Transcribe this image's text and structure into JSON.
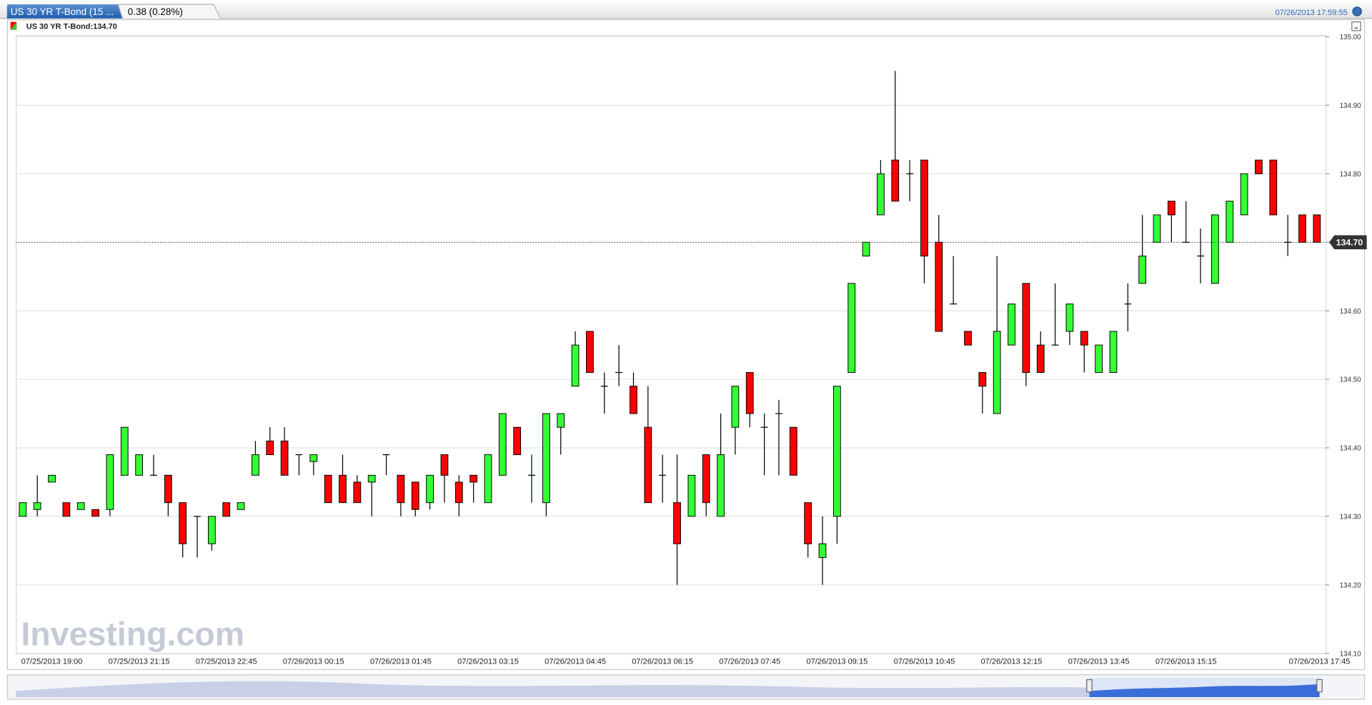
{
  "header": {
    "tab_title": "US 30 YR T-Bond (15 ...",
    "change": "0.38 (0.28%)",
    "timestamp": "07/26/2013 17:59:55"
  },
  "watermark": "Investing.com",
  "chart_data": {
    "type": "candlestick",
    "legend_label": "US 30 YR T-Bond:134.70",
    "up_color": "#33ff33",
    "down_color": "#ff0000",
    "grid": true,
    "ylim": [
      134.1,
      135.0
    ],
    "yticks": [
      {
        "value": 134.1,
        "label": "134.10"
      },
      {
        "value": 134.2,
        "label": "134.20"
      },
      {
        "value": 134.3,
        "label": "134.30"
      },
      {
        "value": 134.4,
        "label": "134.40"
      },
      {
        "value": 134.5,
        "label": "134.50"
      },
      {
        "value": 134.6,
        "label": "134.60"
      },
      {
        "value": 134.7,
        "label": "134.70"
      },
      {
        "value": 134.8,
        "label": "134.80"
      },
      {
        "value": 134.9,
        "label": "134.90"
      },
      {
        "value": 135.0,
        "label": "135.00"
      }
    ],
    "last_price": {
      "value": 134.7,
      "label": "134.70"
    },
    "categories": [
      null,
      null,
      "07/25/2013 19:00",
      null,
      null,
      null,
      null,
      null,
      "07/25/2013 21:15",
      null,
      null,
      null,
      null,
      null,
      "07/25/2013 22:45",
      null,
      null,
      null,
      null,
      null,
      "07/26/2013 00:15",
      null,
      null,
      null,
      null,
      null,
      "07/26/2013 01:45",
      null,
      null,
      null,
      null,
      null,
      "07/26/2013 03:15",
      null,
      null,
      null,
      null,
      null,
      "07/26/2013 04:45",
      null,
      null,
      null,
      null,
      null,
      "07/26/2013 06:15",
      null,
      null,
      null,
      null,
      null,
      "07/26/2013 07:45",
      null,
      null,
      null,
      null,
      null,
      "07/26/2013 09:15",
      null,
      null,
      null,
      null,
      null,
      "07/26/2013 10:45",
      null,
      null,
      null,
      null,
      null,
      "07/26/2013 12:15",
      null,
      null,
      null,
      null,
      null,
      "07/26/2013 13:45",
      null,
      null,
      null,
      null,
      null,
      "07/26/2013 15:15",
      null,
      null,
      null,
      null,
      null,
      null,
      null,
      null,
      "07/26/2013 17:45"
    ],
    "open": [
      134.3,
      134.31,
      134.35,
      134.32,
      134.31,
      134.31,
      134.31,
      134.36,
      134.36,
      134.36,
      134.36,
      134.32,
      134.3,
      134.26,
      134.32,
      134.31,
      134.36,
      134.41,
      134.41,
      134.39,
      134.38,
      134.36,
      134.36,
      134.35,
      134.35,
      134.39,
      134.36,
      134.35,
      134.32,
      134.39,
      134.35,
      134.36,
      134.32,
      134.36,
      134.43,
      134.36,
      134.32,
      134.43,
      134.49,
      134.57,
      134.49,
      134.51,
      134.49,
      134.43,
      134.36,
      134.32,
      134.3,
      134.39,
      134.3,
      134.43,
      134.51,
      134.43,
      134.45,
      134.43,
      134.32,
      134.24,
      134.3,
      134.51,
      134.68,
      134.74,
      134.82,
      134.8,
      134.82,
      134.7,
      134.61,
      134.57,
      134.51,
      134.45,
      134.55,
      134.64,
      134.55,
      134.55,
      134.57,
      134.57,
      134.51,
      134.51,
      134.61,
      134.64,
      134.7,
      134.76,
      134.7,
      134.68,
      134.64,
      134.7,
      134.74,
      134.82,
      134.82,
      134.7,
      134.74,
      134.74
    ],
    "high": [
      134.32,
      134.36,
      134.36,
      134.32,
      134.32,
      134.31,
      134.39,
      134.43,
      134.39,
      134.39,
      134.36,
      134.32,
      134.3,
      134.3,
      134.32,
      134.32,
      134.41,
      134.43,
      134.43,
      134.39,
      134.39,
      134.36,
      134.39,
      134.36,
      134.36,
      134.39,
      134.36,
      134.35,
      134.36,
      134.39,
      134.36,
      134.36,
      134.39,
      134.45,
      134.43,
      134.39,
      134.45,
      134.45,
      134.57,
      134.57,
      134.51,
      134.55,
      134.51,
      134.49,
      134.39,
      134.39,
      134.36,
      134.39,
      134.45,
      134.49,
      134.51,
      134.45,
      134.47,
      134.43,
      134.32,
      134.3,
      134.49,
      134.64,
      134.7,
      134.82,
      134.95,
      134.82,
      134.82,
      134.74,
      134.68,
      134.57,
      134.51,
      134.68,
      134.61,
      134.64,
      134.57,
      134.64,
      134.61,
      134.57,
      134.55,
      134.57,
      134.64,
      134.74,
      134.74,
      134.76,
      134.76,
      134.72,
      134.74,
      134.76,
      134.8,
      134.82,
      134.82,
      134.74,
      134.74,
      134.74
    ],
    "low": [
      134.3,
      134.3,
      134.35,
      134.3,
      134.31,
      134.3,
      134.3,
      134.36,
      134.36,
      134.36,
      134.3,
      134.24,
      134.24,
      134.25,
      134.3,
      134.31,
      134.36,
      134.39,
      134.36,
      134.36,
      134.36,
      134.32,
      134.32,
      134.32,
      134.3,
      134.36,
      134.3,
      134.3,
      134.31,
      134.32,
      134.3,
      134.32,
      134.32,
      134.36,
      134.39,
      134.32,
      134.3,
      134.39,
      134.49,
      134.51,
      134.45,
      134.49,
      134.45,
      134.32,
      134.32,
      134.2,
      134.3,
      134.3,
      134.3,
      134.39,
      134.43,
      134.36,
      134.36,
      134.36,
      134.24,
      134.2,
      134.26,
      134.51,
      134.68,
      134.74,
      134.76,
      134.76,
      134.64,
      134.57,
      134.61,
      134.55,
      134.45,
      134.45,
      134.55,
      134.49,
      134.51,
      134.55,
      134.55,
      134.51,
      134.51,
      134.51,
      134.57,
      134.64,
      134.7,
      134.7,
      134.7,
      134.64,
      134.64,
      134.7,
      134.74,
      134.8,
      134.74,
      134.68,
      134.7,
      134.7
    ],
    "close": [
      134.32,
      134.32,
      134.36,
      134.3,
      134.32,
      134.3,
      134.39,
      134.43,
      134.39,
      134.36,
      134.32,
      134.26,
      134.3,
      134.3,
      134.3,
      134.32,
      134.39,
      134.39,
      134.36,
      134.39,
      134.39,
      134.32,
      134.32,
      134.32,
      134.36,
      134.39,
      134.32,
      134.31,
      134.36,
      134.36,
      134.32,
      134.35,
      134.39,
      134.45,
      134.39,
      134.36,
      134.45,
      134.45,
      134.55,
      134.51,
      134.49,
      134.51,
      134.45,
      134.32,
      134.36,
      134.26,
      134.36,
      134.32,
      134.39,
      134.49,
      134.45,
      134.43,
      134.45,
      134.36,
      134.26,
      134.26,
      134.49,
      134.64,
      134.7,
      134.8,
      134.76,
      134.8,
      134.68,
      134.57,
      134.61,
      134.55,
      134.49,
      134.57,
      134.61,
      134.51,
      134.51,
      134.55,
      134.61,
      134.55,
      134.55,
      134.57,
      134.61,
      134.68,
      134.74,
      134.74,
      134.7,
      134.68,
      134.74,
      134.76,
      134.8,
      134.8,
      134.74,
      134.7,
      134.7,
      134.7
    ]
  }
}
